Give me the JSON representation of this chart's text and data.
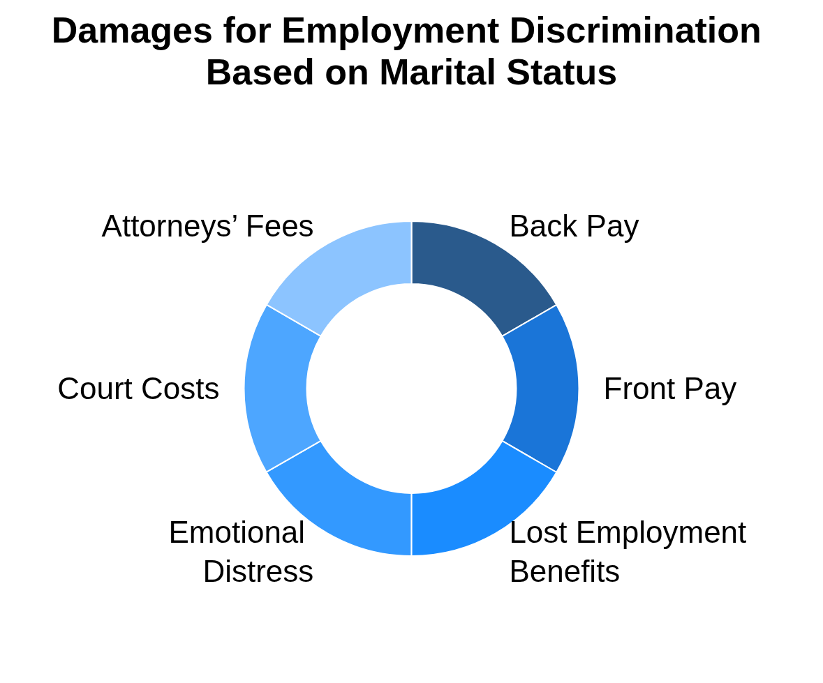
{
  "chart_data": {
    "type": "donut",
    "title": "Damages for Employment Discrimination Based on Marital Status",
    "categories": [
      "Back Pay",
      "Front Pay",
      "Lost Employment Benefits",
      "Emotional Distress",
      "Court Costs",
      "Attorneys’ Fees"
    ],
    "values": [
      16.67,
      16.67,
      16.67,
      16.67,
      16.67,
      16.65
    ],
    "colors": [
      "#2a5a8c",
      "#1a75d8",
      "#1a8cff",
      "#3399ff",
      "#4da6ff",
      "#8cc4ff"
    ],
    "legend": false
  }
}
